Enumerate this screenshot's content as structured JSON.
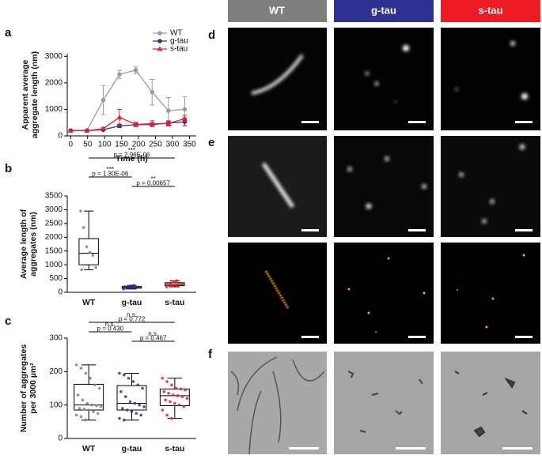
{
  "figure": {
    "panel_labels": [
      "a",
      "b",
      "c",
      "d",
      "e",
      "f"
    ],
    "column_headers": [
      "WT",
      "g-tau",
      "s-tau"
    ]
  },
  "chart_data": [
    {
      "type": "line",
      "xlabel": "Time (h)",
      "ylabel": [
        "Apparent average",
        "aggregate length (nm)"
      ],
      "x": [
        0,
        48,
        96,
        144,
        192,
        240,
        288,
        336
      ],
      "xlim": [
        -10,
        370
      ],
      "xticks": [
        0,
        50,
        100,
        150,
        200,
        250,
        300,
        350
      ],
      "ylim": [
        0,
        3100
      ],
      "yticks": [
        0,
        1000,
        2000,
        3000
      ],
      "legend": "upper right",
      "series": [
        {
          "name": "WT",
          "color": "#9b9b9b",
          "marker": "circle",
          "values": [
            200,
            200,
            1350,
            2320,
            2480,
            1650,
            950,
            1000
          ],
          "errors": [
            0,
            0,
            550,
            150,
            120,
            480,
            500,
            480
          ]
        },
        {
          "name": "g-tau",
          "color": "#2e3192",
          "marker": "circle",
          "values": [
            200,
            200,
            230,
            380,
            420,
            430,
            480,
            530
          ],
          "errors": [
            0,
            0,
            30,
            60,
            50,
            60,
            80,
            150
          ]
        },
        {
          "name": "s-tau",
          "color": "#e8202a",
          "marker": "triangle",
          "values": [
            200,
            200,
            270,
            700,
            430,
            460,
            470,
            650
          ],
          "errors": [
            0,
            0,
            50,
            300,
            80,
            110,
            100,
            120
          ]
        }
      ]
    },
    {
      "type": "box",
      "ylabel": [
        "Average length of",
        "aggregates (nm)"
      ],
      "categories": [
        "WT",
        "g-tau",
        "s-tau"
      ],
      "colors": [
        "#808080",
        "#2e3192",
        "#e8202a"
      ],
      "ylim": [
        0,
        3500
      ],
      "yticks": [
        0,
        500,
        1000,
        1500,
        2000,
        2500,
        3000,
        3500
      ],
      "stats": [
        [
          820,
          1000,
          1420,
          1950,
          2950
        ],
        [
          120,
          150,
          180,
          210,
          250
        ],
        [
          200,
          240,
          290,
          350,
          420
        ]
      ],
      "points": [
        [
          2950,
          2350,
          1650,
          1450,
          1350,
          900,
          820
        ],
        [
          120,
          150,
          160,
          170,
          180,
          190,
          200,
          210,
          230,
          250
        ],
        [
          200,
          230,
          250,
          270,
          290,
          300,
          320,
          340,
          380,
          420
        ]
      ],
      "comparisons": [
        {
          "stars": "***",
          "label": "p = 2.96E-06"
        },
        {
          "stars": "***",
          "label": "p = 1.30E-06"
        },
        {
          "stars": "**",
          "label": "p = 0.00657"
        }
      ]
    },
    {
      "type": "box",
      "ylabel": [
        "Number of aggregates",
        "per 3000 µm²"
      ],
      "categories": [
        "WT",
        "g-tau",
        "s-tau"
      ],
      "colors": [
        "#808080",
        "#2e3192",
        "#e8202a"
      ],
      "ylim": [
        0,
        300
      ],
      "yticks": [
        0,
        100,
        200,
        300
      ],
      "stats": [
        [
          55,
          85,
          100,
          162,
          220
        ],
        [
          55,
          85,
          105,
          158,
          195
        ],
        [
          60,
          98,
          128,
          148,
          180
        ]
      ],
      "points": [
        [
          220,
          210,
          195,
          180,
          160,
          150,
          130,
          115,
          105,
          100,
          98,
          95,
          90,
          88,
          85,
          80,
          75,
          70,
          65,
          55
        ],
        [
          195,
          190,
          180,
          170,
          160,
          150,
          140,
          125,
          110,
          105,
          100,
          95,
          90,
          85,
          80,
          75,
          70,
          60,
          55
        ],
        [
          180,
          170,
          160,
          150,
          148,
          145,
          140,
          135,
          130,
          128,
          125,
          120,
          115,
          110,
          105,
          100,
          95,
          85,
          70,
          60
        ]
      ],
      "comparisons": [
        {
          "stars": "n.s.",
          "label": "p = 0.772"
        },
        {
          "stars": "n.s.",
          "label": "p = 0.430"
        },
        {
          "stars": "n.s.",
          "label": "p = 0.467"
        }
      ]
    }
  ]
}
